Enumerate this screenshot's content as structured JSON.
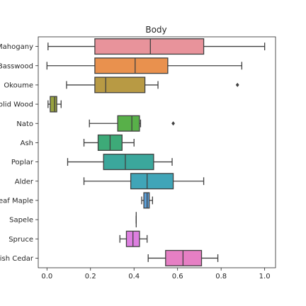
{
  "chart_data": {
    "type": "boxplot",
    "orientation": "horizontal",
    "title": "Body",
    "xlabel": "",
    "ylabel": "",
    "xlim": [
      -0.04,
      1.05
    ],
    "xticks": [
      0.0,
      0.2,
      0.4,
      0.6,
      0.8,
      1.0
    ],
    "xtick_labels": [
      "0.0",
      "0.2",
      "0.4",
      "0.6",
      "0.8",
      "1.0"
    ],
    "grid": false,
    "series": [
      {
        "name": "Mahogany",
        "color": "#e8939b",
        "whisker_low": 0.005,
        "q1": 0.22,
        "median": 0.475,
        "q3": 0.72,
        "whisker_high": 1.0,
        "outliers": []
      },
      {
        "name": "Basswood",
        "color": "#e9914e",
        "whisker_low": 0.0,
        "q1": 0.22,
        "median": 0.405,
        "q3": 0.555,
        "whisker_high": 0.895,
        "outliers": []
      },
      {
        "name": "Okoume",
        "color": "#b89a44",
        "whisker_low": 0.09,
        "q1": 0.22,
        "median": 0.27,
        "q3": 0.45,
        "whisker_high": 0.51,
        "outliers": [
          0.875
        ]
      },
      {
        "name": "Solid Wood",
        "color": "#98a23f",
        "whisker_low": 0.005,
        "q1": 0.015,
        "median": 0.035,
        "q3": 0.045,
        "whisker_high": 0.065,
        "outliers": []
      },
      {
        "name": "Nato",
        "color": "#58b049",
        "whisker_low": 0.195,
        "q1": 0.325,
        "median": 0.39,
        "q3": 0.425,
        "whisker_high": 0.43,
        "outliers": [
          0.58
        ]
      },
      {
        "name": "Ash",
        "color": "#3daa78",
        "whisker_low": 0.17,
        "q1": 0.235,
        "median": 0.29,
        "q3": 0.345,
        "whisker_high": 0.4,
        "outliers": []
      },
      {
        "name": "Poplar",
        "color": "#3ba79c",
        "whisker_low": 0.095,
        "q1": 0.26,
        "median": 0.36,
        "q3": 0.49,
        "whisker_high": 0.575,
        "outliers": []
      },
      {
        "name": "Alder",
        "color": "#40a5b8",
        "whisker_low": 0.17,
        "q1": 0.385,
        "median": 0.46,
        "q3": 0.58,
        "whisker_high": 0.72,
        "outliers": []
      },
      {
        "name": "Leaf Maple",
        "color": "#5b9fd8",
        "whisker_low": 0.435,
        "q1": 0.445,
        "median": 0.46,
        "q3": 0.47,
        "whisker_high": 0.485,
        "outliers": []
      },
      {
        "name": "Sapele",
        "color": "#a48ce2",
        "whisker_low": 0.41,
        "q1": 0.41,
        "median": 0.41,
        "q3": 0.41,
        "whisker_high": 0.41,
        "outliers": []
      },
      {
        "name": "Spruce",
        "color": "#dd7fe0",
        "whisker_low": 0.335,
        "q1": 0.365,
        "median": 0.395,
        "q3": 0.425,
        "whisker_high": 0.46,
        "outliers": []
      },
      {
        "name": "Spanish Cedar",
        "color": "#e67fc4",
        "whisker_low": 0.465,
        "q1": 0.545,
        "median": 0.625,
        "q3": 0.71,
        "whisker_high": 0.785,
        "outliers": []
      }
    ]
  }
}
